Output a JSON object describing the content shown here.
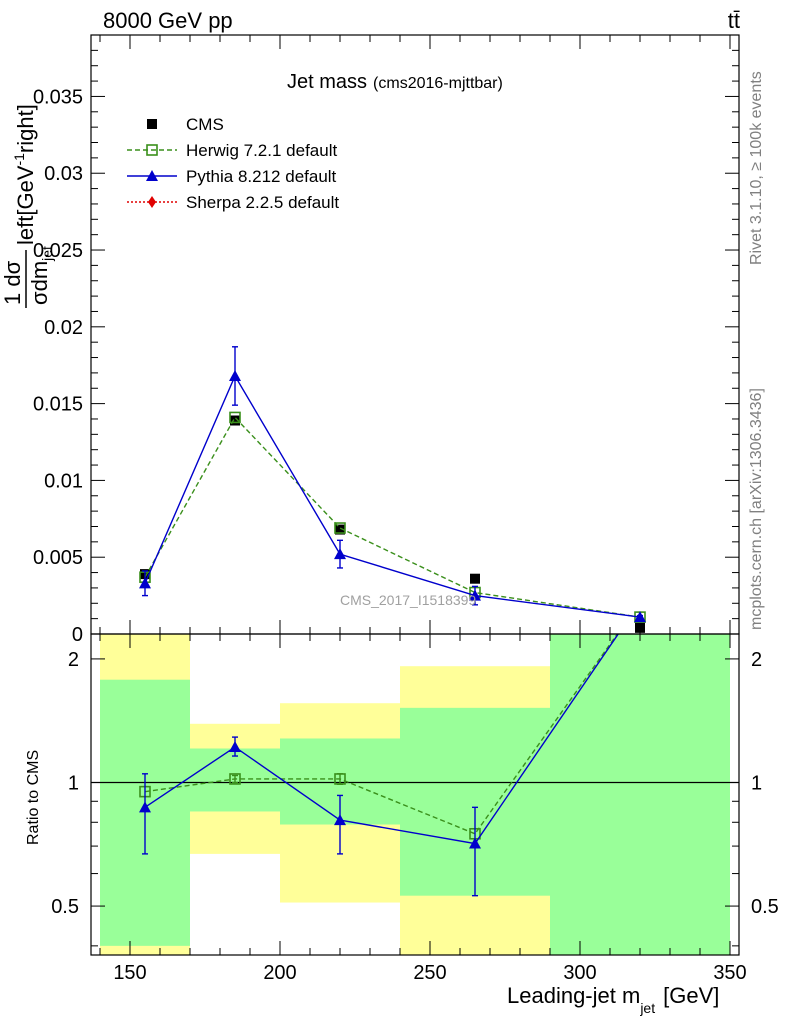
{
  "header": {
    "left": "8000 GeV pp",
    "right": "tt̄"
  },
  "side_labels": {
    "rivet": "Rivet 3.1.10, ≥ 100k events",
    "mcplots": "mcplots.cern.ch [arXiv:1306.3436]"
  },
  "chart_data": {
    "type": "line",
    "title": "Jet mass",
    "subtitle": "(cms2016-mjttbar)",
    "watermark": "CMS_2017_I1518399",
    "x": {
      "label_main": "Leading-jet m",
      "label_sub": "jet",
      "label_unit": "[GeV]",
      "range": [
        137,
        353
      ],
      "ticks": [
        150,
        200,
        250,
        300,
        350
      ]
    },
    "main": {
      "ylabel_frac_num": "1 dσ",
      "ylabel_frac_den": "σdm",
      "ylabel_frac_den_sub": "jet",
      "ylabel_rest": "left[GeV",
      "ylabel_rest_sup": "-1",
      "ylabel_rest_end": "right]",
      "range": [
        0,
        0.039
      ],
      "ticks": [
        0,
        0.005,
        0.01,
        0.015,
        0.02,
        0.025,
        0.03,
        0.035
      ],
      "tick_labels": [
        "0",
        "0.005",
        "0.01",
        "0.015",
        "0.02",
        "0.025",
        "0.03",
        "0.035"
      ],
      "legend_position": "top-left"
    },
    "ratio": {
      "ylabel": "Ratio to CMS",
      "log_scale": true,
      "range": [
        0.38,
        2.3
      ],
      "ticks": [
        0.5,
        1,
        2
      ],
      "tick_labels": [
        "0.5",
        "1",
        "2"
      ]
    },
    "bins": [
      {
        "lo": 140,
        "hi": 170,
        "stat_lo": 0.4,
        "stat_hi": 1.78,
        "tot_lo": 0.36,
        "tot_hi": 2.3
      },
      {
        "lo": 170,
        "hi": 200,
        "stat_lo": 0.85,
        "stat_hi": 1.21,
        "tot_lo": 0.67,
        "tot_hi": 1.39
      },
      {
        "lo": 200,
        "hi": 240,
        "stat_lo": 0.79,
        "stat_hi": 1.28,
        "tot_lo": 0.51,
        "tot_hi": 1.56
      },
      {
        "lo": 240,
        "hi": 290,
        "stat_lo": 0.53,
        "stat_hi": 1.52,
        "tot_lo": 0.36,
        "tot_hi": 1.92
      },
      {
        "lo": 290,
        "hi": 350,
        "stat_lo": 0.36,
        "stat_hi": 2.3,
        "tot_lo": 0.36,
        "tot_hi": 2.3
      }
    ],
    "series": [
      {
        "name": "CMS",
        "color": "#000000",
        "marker": "filled-square",
        "x": [
          155,
          185,
          220,
          265,
          320
        ],
        "y": [
          0.0039,
          0.0139,
          0.0068,
          0.0036,
          0.0004
        ]
      },
      {
        "name": "Herwig 7.2.1 default",
        "color": "#3a8f1b",
        "marker": "open-square",
        "line": "dashed",
        "x": [
          155,
          185,
          220,
          265,
          320
        ],
        "y": [
          0.0037,
          0.0141,
          0.0069,
          0.0027,
          0.0011
        ],
        "ratio": [
          0.95,
          1.02,
          1.02,
          0.75,
          2.75
        ],
        "ratio_err": [
          0.0,
          0.02,
          0.03,
          0.0,
          0.0
        ]
      },
      {
        "name": "Pythia 8.212 default",
        "color": "#0000cc",
        "marker": "filled-triangle",
        "line": "solid",
        "x": [
          155,
          185,
          220,
          265,
          320
        ],
        "y": [
          0.0033,
          0.0168,
          0.0052,
          0.0025,
          0.0011
        ],
        "y_err": [
          0.0008,
          0.0019,
          0.0009,
          0.0006,
          0.0001
        ],
        "ratio": [
          0.87,
          1.22,
          0.81,
          0.71,
          2.75
        ],
        "ratio_err_lo": [
          0.2,
          0.06,
          0.14,
          0.18,
          0.0
        ],
        "ratio_err_hi": [
          0.18,
          0.07,
          0.12,
          0.16,
          0.0
        ]
      },
      {
        "name": "Sherpa 2.2.5 default",
        "color": "#e00000",
        "marker": "filled-diamond",
        "line": "dotted",
        "x": [],
        "y": []
      }
    ]
  }
}
